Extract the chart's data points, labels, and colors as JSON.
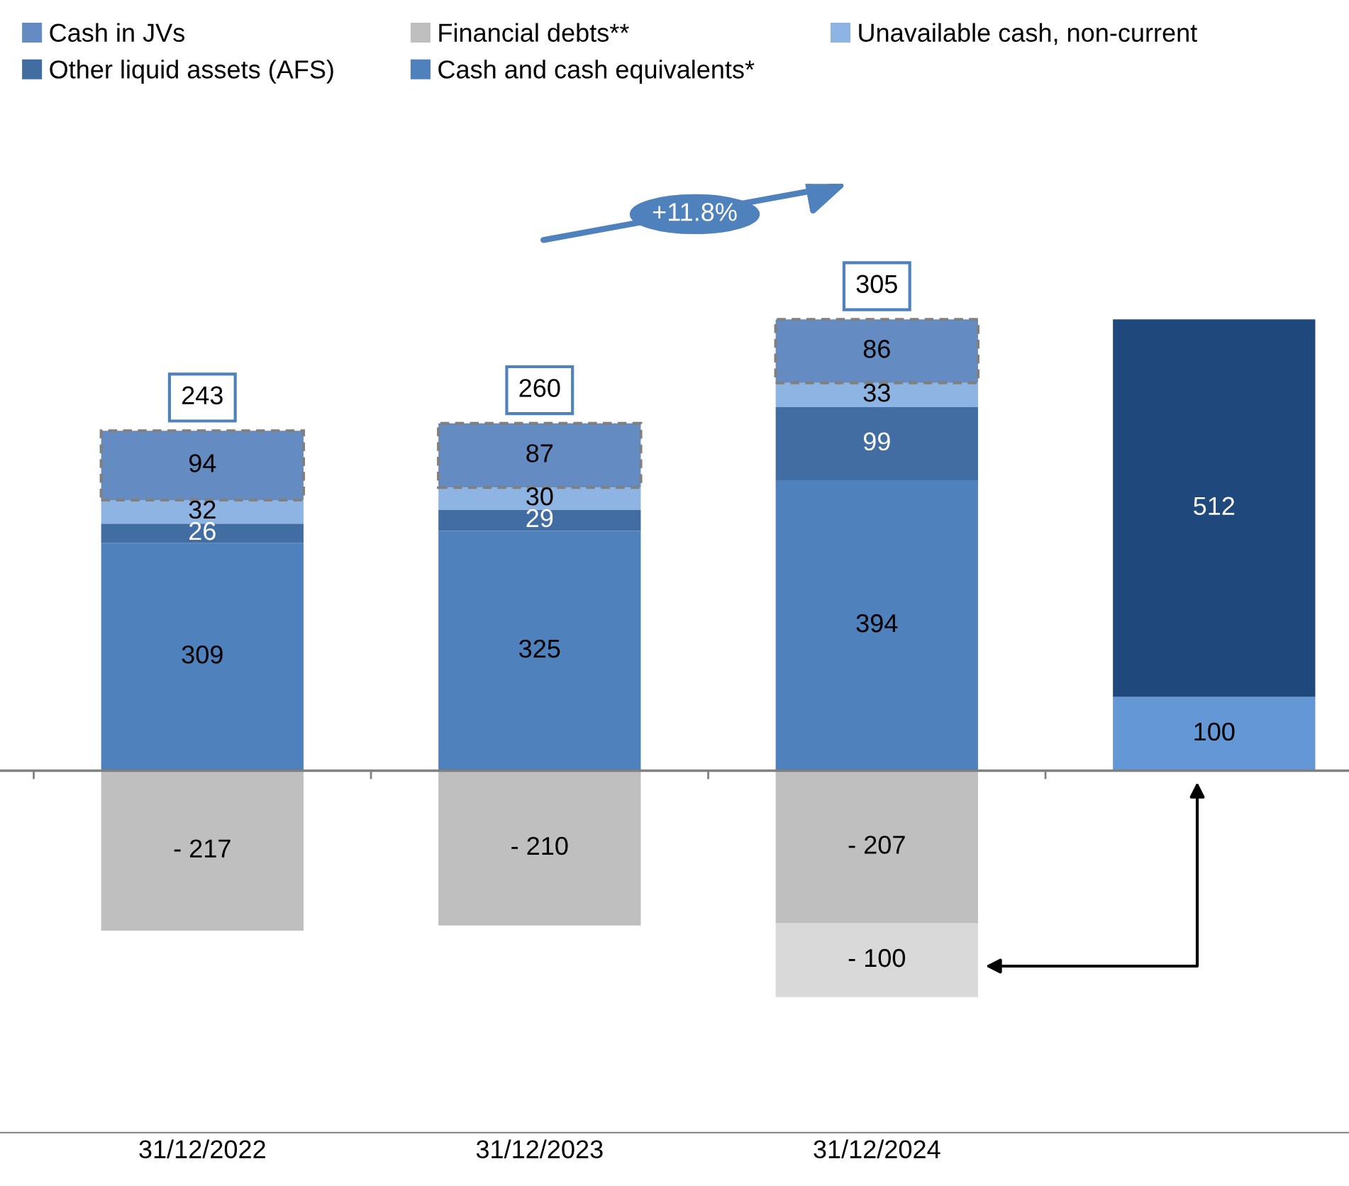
{
  "chart_data": {
    "type": "bar",
    "stacked": true,
    "categories": [
      "31/12/2022",
      "31/12/2023",
      "31/12/2024",
      null
    ],
    "tick_labels": "x",
    "legend": "top",
    "series": [
      {
        "name": "Cash and cash equivalents*",
        "color": "#4f81bd",
        "values": [
          309,
          325,
          394,
          null
        ],
        "value_labels": [
          "309",
          "325",
          "394",
          null
        ]
      },
      {
        "name": "Other liquid assets (AFS)",
        "color": "#426da3",
        "values": [
          26,
          29,
          99,
          null
        ],
        "value_labels": [
          "26",
          "29",
          "99",
          null
        ]
      },
      {
        "name": "Unavailable cash, non-current",
        "color": "#8eb4e3",
        "values": [
          32,
          30,
          33,
          null
        ],
        "value_labels": [
          "32",
          "30",
          "33",
          null
        ]
      },
      {
        "name": "Financial debts**",
        "color": "#bfbfbf",
        "values": [
          -217,
          -210,
          -207,
          null
        ],
        "value_labels": [
          "- 217",
          "- 210",
          "- 207",
          null
        ]
      },
      {
        "name": "Cash in JVs",
        "color": "#648cc2",
        "line_style": "dashed",
        "values": [
          94,
          87,
          86,
          null
        ],
        "value_labels": [
          "94",
          "87",
          "86",
          null
        ]
      },
      {
        "color": "#d9d9d9",
        "values": [
          null,
          null,
          -100,
          null
        ],
        "value_labels": [
          null,
          null,
          "- 100",
          null
        ]
      },
      {
        "color": "#6397d6",
        "values": [
          null,
          null,
          null,
          100
        ],
        "value_labels": [
          null,
          null,
          null,
          "100"
        ]
      },
      {
        "color": "#1f497d",
        "values": [
          null,
          null,
          null,
          512
        ],
        "value_labels": [
          null,
          null,
          null,
          "512"
        ]
      }
    ],
    "totals": [
      "243",
      "260",
      "305",
      null
    ],
    "annotations": [
      "+11.8%"
    ]
  }
}
